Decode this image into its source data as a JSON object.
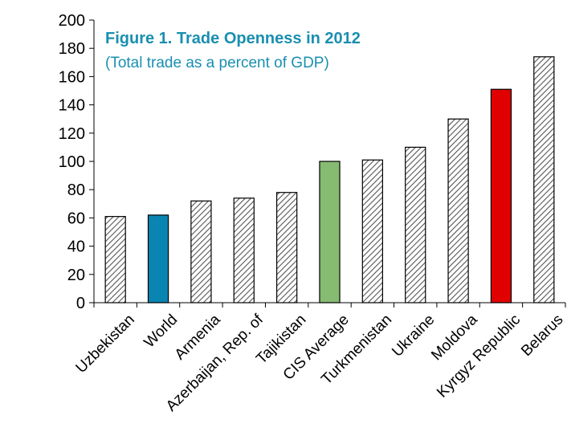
{
  "chart_data": {
    "type": "bar",
    "title": "Figure  1. Trade Openness in 2012",
    "subtitle": "(Total trade as a percent of GDP)",
    "xlabel": "",
    "ylabel": "",
    "ylim": [
      0,
      200
    ],
    "yticks": [
      0,
      20,
      40,
      60,
      80,
      100,
      120,
      140,
      160,
      180,
      200
    ],
    "ytick_labels": [
      "0",
      "20",
      "40",
      "60",
      "80",
      "100",
      "120",
      "140",
      "160",
      "180",
      "200"
    ],
    "categories": [
      "Uzbekistan",
      "World",
      "Armenia",
      "Azerbaijan, Rep. of",
      "Tajikistan",
      "CIS Average",
      "Turkmenistan",
      "Ukraine",
      "Moldova",
      "Kyrgyz Republic",
      "Belarus"
    ],
    "values": [
      61,
      62,
      72,
      74,
      78,
      100,
      101,
      110,
      130,
      151,
      174
    ],
    "bar_styles": [
      "hatched",
      "solid",
      "hatched",
      "hatched",
      "hatched",
      "solid",
      "hatched",
      "hatched",
      "hatched",
      "solid",
      "hatched"
    ],
    "bar_colors": [
      "#ffffff",
      "#0a84b0",
      "#ffffff",
      "#ffffff",
      "#ffffff",
      "#86bb72",
      "#ffffff",
      "#ffffff",
      "#ffffff",
      "#e00000",
      "#ffffff"
    ],
    "hatch_color": "#555555",
    "grid": false,
    "legend": "none"
  }
}
